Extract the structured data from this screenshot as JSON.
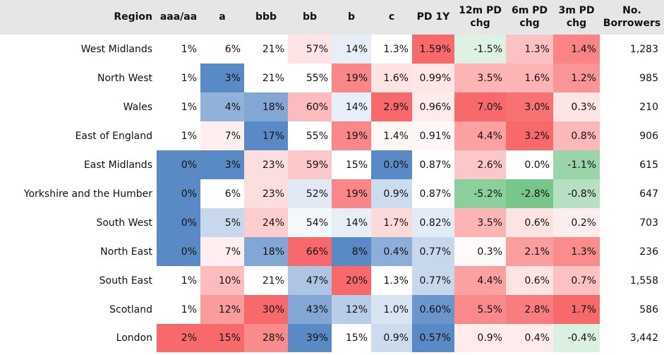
{
  "chart_data": {
    "type": "heatmap",
    "title": "",
    "columns": [
      "Region",
      "aaa/aa",
      "a",
      "bbb",
      "bb",
      "b",
      "c",
      "PD 1Y",
      "12m PD chg",
      "6m PD chg",
      "3m PD chg",
      "No. Borrowers"
    ],
    "rows": [
      {
        "region": "West Midlands",
        "values": [
          "1%",
          "6%",
          "21%",
          "57%",
          "14%",
          "1.3%",
          "1.59%",
          "-1.5%",
          "1.3%",
          "1.4%"
        ],
        "borrowers": "1,283"
      },
      {
        "region": "North West",
        "values": [
          "1%",
          "3%",
          "21%",
          "55%",
          "19%",
          "1.6%",
          "0.99%",
          "3.5%",
          "1.6%",
          "1.2%"
        ],
        "borrowers": "985"
      },
      {
        "region": "Wales",
        "values": [
          "1%",
          "4%",
          "18%",
          "60%",
          "14%",
          "2.9%",
          "0.96%",
          "7.0%",
          "3.0%",
          "0.3%"
        ],
        "borrowers": "210"
      },
      {
        "region": "East of England",
        "values": [
          "1%",
          "7%",
          "17%",
          "55%",
          "19%",
          "1.4%",
          "0.91%",
          "4.4%",
          "3.2%",
          "0.8%"
        ],
        "borrowers": "906"
      },
      {
        "region": "East Midlands",
        "values": [
          "0%",
          "3%",
          "23%",
          "59%",
          "15%",
          "0.0%",
          "0.87%",
          "2.6%",
          "0.0%",
          "-1.1%"
        ],
        "borrowers": "615"
      },
      {
        "region": "Yorkshire and the Humber",
        "values": [
          "0%",
          "6%",
          "23%",
          "52%",
          "19%",
          "0.9%",
          "0.87%",
          "-5.2%",
          "-2.8%",
          "-0.8%"
        ],
        "borrowers": "647"
      },
      {
        "region": "South West",
        "values": [
          "0%",
          "5%",
          "24%",
          "54%",
          "14%",
          "1.7%",
          "0.82%",
          "3.5%",
          "0.6%",
          "0.2%"
        ],
        "borrowers": "703"
      },
      {
        "region": "North East",
        "values": [
          "0%",
          "7%",
          "18%",
          "66%",
          "8%",
          "0.4%",
          "0.77%",
          "0.3%",
          "2.1%",
          "1.3%"
        ],
        "borrowers": "236"
      },
      {
        "region": "South East",
        "values": [
          "1%",
          "10%",
          "21%",
          "47%",
          "20%",
          "1.3%",
          "0.77%",
          "4.4%",
          "0.6%",
          "0.7%"
        ],
        "borrowers": "1,558"
      },
      {
        "region": "Scotland",
        "values": [
          "1%",
          "12%",
          "30%",
          "43%",
          "12%",
          "1.0%",
          "0.60%",
          "5.5%",
          "2.8%",
          "1.7%"
        ],
        "borrowers": "586"
      },
      {
        "region": "London",
        "values": [
          "2%",
          "15%",
          "28%",
          "39%",
          "15%",
          "0.9%",
          "0.57%",
          "0.9%",
          "0.4%",
          "-0.4%"
        ],
        "borrowers": "3,442"
      }
    ],
    "colors": {
      "header_bg": "#e6e6e6",
      "neutral": "#ffffff",
      "blue_strong": "#5a8ac6",
      "red_strong": "#f8696b",
      "green_strong": "#63be7b",
      "rating_scale": "blue-white-red",
      "change_scale": "green-white-red"
    }
  }
}
